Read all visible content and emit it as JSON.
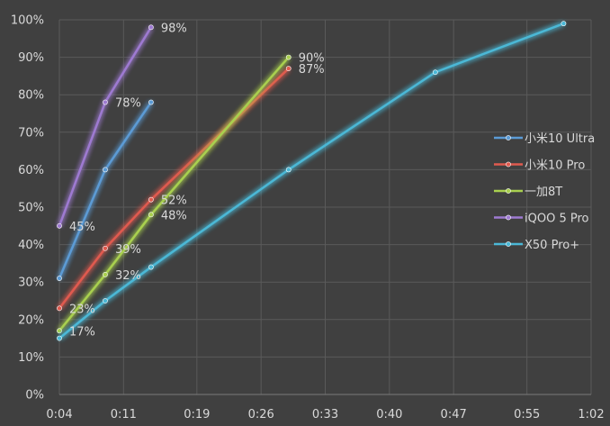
{
  "chart_data": {
    "type": "line",
    "title": "",
    "xlabel": "",
    "ylabel": "",
    "x_unit": "seconds",
    "xlim": [
      4,
      62
    ],
    "ylim": [
      0,
      100
    ],
    "x_ticks": [
      4,
      11,
      19,
      26,
      33,
      40,
      47,
      55,
      62
    ],
    "x_tick_labels": [
      "0:04",
      "0:11",
      "0:19",
      "0:26",
      "0:33",
      "0:40",
      "0:47",
      "0:55",
      "1:02"
    ],
    "y_ticks": [
      0,
      10,
      20,
      30,
      40,
      50,
      60,
      70,
      80,
      90,
      100
    ],
    "y_tick_labels": [
      "0%",
      "10%",
      "20%",
      "30%",
      "40%",
      "50%",
      "60%",
      "70%",
      "80%",
      "90%",
      "100%"
    ],
    "grid": true,
    "legend_position": "right",
    "series": [
      {
        "name": "小米10 Ultra",
        "color": "#5b9bd5",
        "x": [
          4,
          9,
          14
        ],
        "y": [
          31,
          60,
          78
        ],
        "labels": [
          "",
          "",
          ""
        ]
      },
      {
        "name": "小米10 Pro",
        "color": "#e05a4f",
        "x": [
          4,
          9,
          14,
          29
        ],
        "y": [
          23,
          39,
          52,
          87
        ],
        "labels": [
          "23%",
          "39%",
          "52%",
          "87%"
        ]
      },
      {
        "name": "一加8T",
        "color": "#a9d04f",
        "x": [
          4,
          9,
          14,
          29
        ],
        "y": [
          17,
          32,
          48,
          90
        ],
        "labels": [
          "17%",
          "32%",
          "48%",
          "90%"
        ]
      },
      {
        "name": "iQOO 5 Pro",
        "color": "#9e7ad1",
        "x": [
          4,
          9,
          14
        ],
        "y": [
          45,
          78,
          98
        ],
        "labels": [
          "45%",
          "78%",
          "98%"
        ]
      },
      {
        "name": "X50 Pro+",
        "color": "#4bb8d6",
        "x": [
          4,
          9,
          14,
          29,
          45,
          59
        ],
        "y": [
          15,
          25,
          34,
          60,
          86,
          99
        ],
        "labels": [
          "",
          "",
          "",
          "",
          "",
          ""
        ]
      }
    ]
  }
}
